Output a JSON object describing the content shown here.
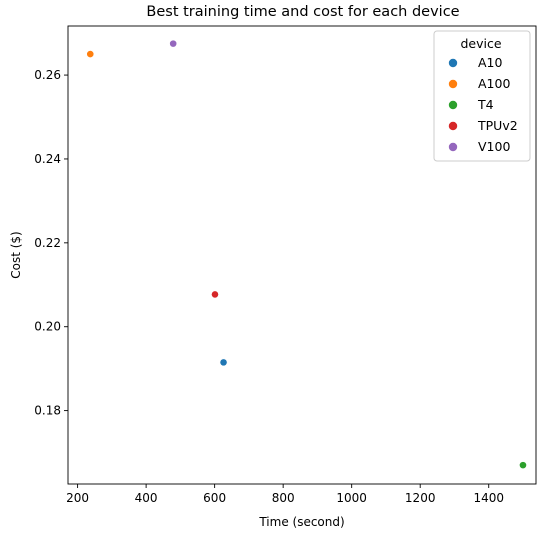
{
  "chart_data": {
    "type": "scatter",
    "title": "Best training time and cost for each device",
    "xlabel": "Time (second)",
    "ylabel": "Cost ($)",
    "xlim": [
      172,
      1538
    ],
    "ylim": [
      0.1625,
      0.2717
    ],
    "xticks": [
      200,
      400,
      600,
      800,
      1000,
      1200,
      1400
    ],
    "xtick_labels": [
      "200",
      "400",
      "600",
      "800",
      "1000",
      "1200",
      "1400"
    ],
    "yticks": [
      0.18,
      0.2,
      0.22,
      0.24,
      0.26
    ],
    "ytick_labels": [
      "0.18",
      "0.20",
      "0.22",
      "0.24",
      "0.26"
    ],
    "grid": false,
    "legend": {
      "title": "device",
      "placement": "top-right",
      "entries": [
        "A10",
        "A100",
        "T4",
        "TPUv2",
        "V100"
      ]
    },
    "series": [
      {
        "name": "A10",
        "color": "#1f77b4",
        "points": [
          [
            626,
            0.1915
          ]
        ]
      },
      {
        "name": "A100",
        "color": "#ff7f0e",
        "points": [
          [
            237,
            0.265
          ]
        ]
      },
      {
        "name": "T4",
        "color": "#2ca02c",
        "points": [
          [
            1500,
            0.167
          ]
        ]
      },
      {
        "name": "TPUv2",
        "color": "#d62728",
        "points": [
          [
            601,
            0.2077
          ]
        ]
      },
      {
        "name": "V100",
        "color": "#9467bd",
        "points": [
          [
            479,
            0.2675
          ]
        ]
      }
    ]
  }
}
